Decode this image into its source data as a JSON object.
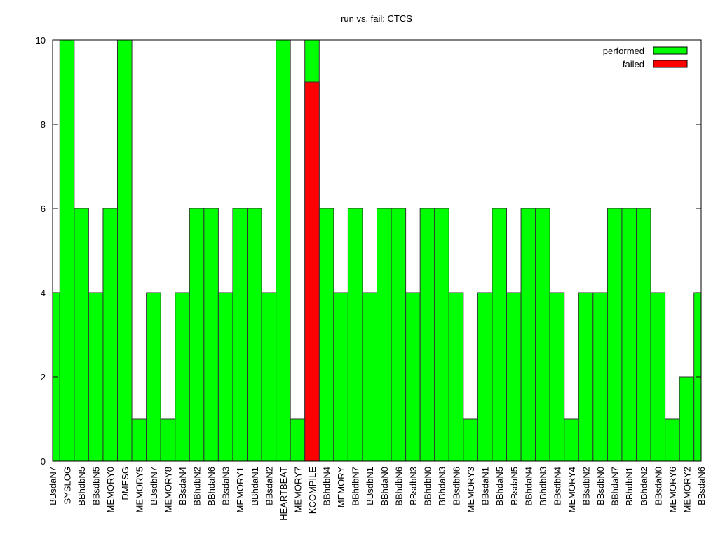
{
  "chart_data": {
    "type": "bar",
    "title": "run vs. fail: CTCS",
    "categories": [
      "BBsdaN7",
      "SYSLOG",
      "BBhdbN5",
      "BBsdbN5",
      "MEMORY0",
      "DMESG",
      "MEMORY5",
      "BBsdbN7",
      "MEMORY8",
      "BBsdaN4",
      "BBhdbN2",
      "BBhdaN6",
      "BBsdaN3",
      "MEMORY1",
      "BBhdaN1",
      "BBsdaN2",
      "HEARTBEAT",
      "MEMORY7",
      "KCOMPILE",
      "BBhdbN4",
      "MEMORY",
      "BBhdbN7",
      "BBsdbN1",
      "BBhdaN0",
      "BBhdbN6",
      "BBsdbN3",
      "BBhdbN0",
      "BBhdaN3",
      "BBsdbN6",
      "MEMORY3",
      "BBsdaN1",
      "BBhdaN5",
      "BBsdaN5",
      "BBhdaN4",
      "BBhdbN3",
      "BBsdbN4",
      "MEMORY4",
      "BBsdbN2",
      "BBsdbN0",
      "BBhdaN7",
      "BBhdbN1",
      "BBhdaN2",
      "BBsdaN0",
      "MEMORY6",
      "MEMORY2",
      "BBsdaN6"
    ],
    "series": [
      {
        "name": "performed",
        "color": "#00ff00",
        "values": [
          4,
          10,
          6,
          4,
          6,
          10,
          1,
          4,
          1,
          4,
          6,
          6,
          4,
          6,
          6,
          4,
          10,
          1,
          10,
          6,
          4,
          6,
          4,
          6,
          6,
          4,
          6,
          6,
          4,
          1,
          4,
          6,
          4,
          6,
          6,
          4,
          1,
          4,
          4,
          6,
          6,
          6,
          4,
          1,
          2,
          4
        ]
      },
      {
        "name": "failed",
        "color": "#ff0000",
        "values": [
          0,
          0,
          0,
          0,
          0,
          0,
          0,
          0,
          0,
          0,
          0,
          0,
          0,
          0,
          0,
          0,
          0,
          0,
          9,
          0,
          0,
          0,
          0,
          0,
          0,
          0,
          0,
          0,
          0,
          0,
          0,
          0,
          0,
          0,
          0,
          0,
          0,
          0,
          0,
          0,
          0,
          0,
          0,
          0,
          0,
          0
        ]
      }
    ],
    "ylim": [
      0,
      10
    ],
    "yticks": [
      0,
      2,
      4,
      6,
      8,
      10
    ],
    "legend": "top-right"
  }
}
